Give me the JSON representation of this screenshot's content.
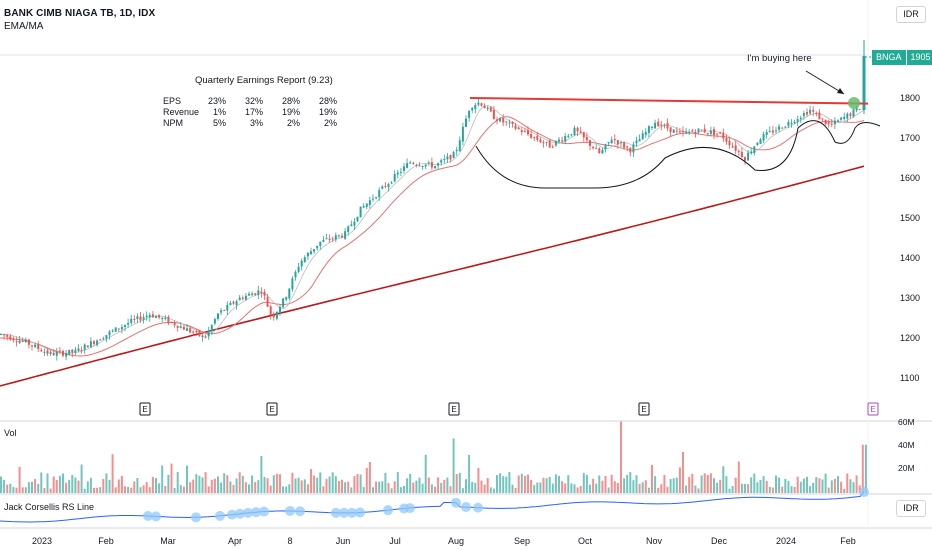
{
  "header": {
    "title": "BANK CIMB NIAGA TB, 1D, IDX",
    "indicator": "EMA/MA",
    "currency": "IDR"
  },
  "ticker_label": {
    "symbol": "BNGA",
    "price": "1905"
  },
  "annotation": {
    "text": "I'm buying here"
  },
  "earnings_table": {
    "title": "Quarterly Earnings Report (9.23)",
    "rows": [
      {
        "label": "EPS",
        "values": [
          "23%",
          "32%",
          "28%",
          "28%"
        ]
      },
      {
        "label": "Revenue",
        "values": [
          "1%",
          "17%",
          "19%",
          "19%"
        ]
      },
      {
        "label": "NPM",
        "values": [
          "5%",
          "3%",
          "2%",
          "2%"
        ]
      }
    ]
  },
  "volume_pane": {
    "label": "Vol",
    "ticks": [
      "60M",
      "40M",
      "20M"
    ]
  },
  "rs_pane": {
    "label": "Jack Corsellis RS Line",
    "currency": "IDR"
  },
  "colors": {
    "up": "#26a69a",
    "down": "#ef5350",
    "ma_long": "#b71c1c",
    "ma_mid": "#e57373",
    "ma_short": "#bdbdbd",
    "resistance": "#e53935",
    "rs_line": "#2962ff",
    "ticker_bg": "#22ab94"
  },
  "chart_data": {
    "type": "candlestick",
    "y_ticks": [
      1800,
      1700,
      1600,
      1500,
      1400,
      1300,
      1200,
      1100
    ],
    "x_labels": [
      "2023",
      "Feb",
      "Mar",
      "Apr",
      "8",
      "Jun",
      "Jul",
      "Aug",
      "Sep",
      "Oct",
      "Nov",
      "Dec",
      "2024",
      "Feb"
    ],
    "earnings_markers": [
      "E",
      "E",
      "E",
      "E",
      "E"
    ],
    "price_keypoints": [
      {
        "x": "2023",
        "close": 1210
      },
      {
        "x": "Feb",
        "close": 1160
      },
      {
        "x": "Mar",
        "close": 1240
      },
      {
        "x": "Apr",
        "close": 1220
      },
      {
        "x": "8",
        "close": 1320
      },
      {
        "x": "Jun",
        "close": 1470
      },
      {
        "x": "Jul",
        "close": 1600
      },
      {
        "x": "Aug",
        "close": 1780
      },
      {
        "x": "Sep",
        "close": 1680
      },
      {
        "x": "Oct",
        "close": 1700
      },
      {
        "x": "Nov",
        "close": 1710
      },
      {
        "x": "Dec",
        "close": 1690
      },
      {
        "x": "2024",
        "close": 1740
      },
      {
        "x": "Feb",
        "close": 1905
      }
    ],
    "resistance_level": 1790,
    "last_price": 1905
  }
}
